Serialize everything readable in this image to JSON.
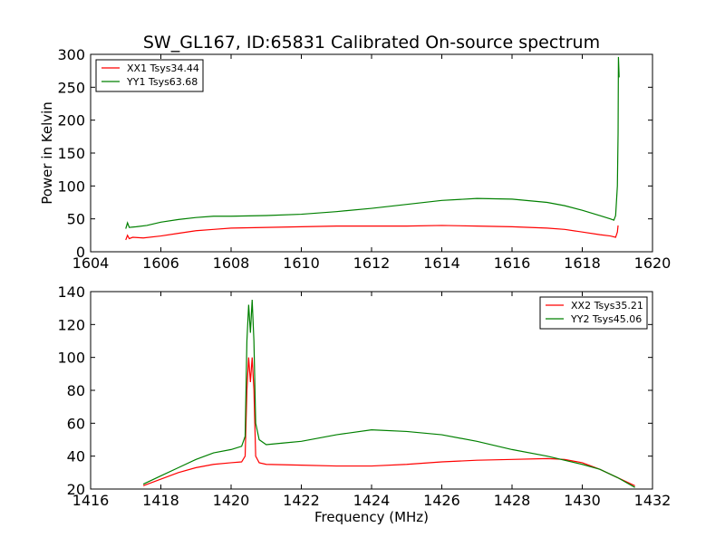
{
  "figure": {
    "title": "SW_GL167, ID:65831 Calibrated On-source spectrum",
    "ylabel": "Power in Kelvin",
    "xlabel": "Frequency (MHz)"
  },
  "chart_data": [
    {
      "type": "line",
      "xlim": [
        1604,
        1620
      ],
      "ylim": [
        0,
        300
      ],
      "xticks": [
        1604,
        1606,
        1608,
        1610,
        1612,
        1614,
        1616,
        1618,
        1620
      ],
      "yticks": [
        0,
        50,
        100,
        150,
        200,
        250,
        300
      ],
      "ylabel": "Power in Kelvin",
      "legend_position": "top-left",
      "series": [
        {
          "name": "XX1 Tsys34.44",
          "color": "#ff0000",
          "points": [
            [
              1605.0,
              18
            ],
            [
              1605.05,
              25
            ],
            [
              1605.1,
              20
            ],
            [
              1605.2,
              22
            ],
            [
              1605.5,
              21
            ],
            [
              1606.0,
              24
            ],
            [
              1606.5,
              28
            ],
            [
              1607.0,
              32
            ],
            [
              1607.5,
              34
            ],
            [
              1608.0,
              36
            ],
            [
              1609.0,
              37
            ],
            [
              1610.0,
              38
            ],
            [
              1611.0,
              39
            ],
            [
              1612.0,
              39
            ],
            [
              1613.0,
              39
            ],
            [
              1614.0,
              40
            ],
            [
              1615.0,
              39
            ],
            [
              1616.0,
              38
            ],
            [
              1617.0,
              36
            ],
            [
              1617.5,
              34
            ],
            [
              1618.0,
              30
            ],
            [
              1618.5,
              26
            ],
            [
              1618.8,
              24
            ],
            [
              1618.95,
              22
            ],
            [
              1619.0,
              30
            ],
            [
              1619.02,
              40
            ]
          ]
        },
        {
          "name": "YY1 Tsys63.68",
          "color": "#008000",
          "points": [
            [
              1605.0,
              35
            ],
            [
              1605.05,
              44
            ],
            [
              1605.1,
              37
            ],
            [
              1605.3,
              38
            ],
            [
              1605.6,
              40
            ],
            [
              1606.0,
              45
            ],
            [
              1606.5,
              49
            ],
            [
              1607.0,
              52
            ],
            [
              1607.5,
              54
            ],
            [
              1608.0,
              54
            ],
            [
              1609.0,
              55
            ],
            [
              1610.0,
              57
            ],
            [
              1611.0,
              61
            ],
            [
              1612.0,
              66
            ],
            [
              1613.0,
              72
            ],
            [
              1614.0,
              78
            ],
            [
              1615.0,
              81
            ],
            [
              1616.0,
              80
            ],
            [
              1617.0,
              75
            ],
            [
              1617.5,
              70
            ],
            [
              1618.0,
              63
            ],
            [
              1618.5,
              55
            ],
            [
              1618.8,
              50
            ],
            [
              1618.9,
              48
            ],
            [
              1618.95,
              55
            ],
            [
              1619.0,
              100
            ],
            [
              1619.02,
              180
            ],
            [
              1619.03,
              296
            ],
            [
              1619.05,
              265
            ]
          ]
        }
      ]
    },
    {
      "type": "line",
      "xlim": [
        1416,
        1432
      ],
      "ylim": [
        20,
        140
      ],
      "xticks": [
        1416,
        1418,
        1420,
        1422,
        1424,
        1426,
        1428,
        1430,
        1432
      ],
      "yticks": [
        20,
        40,
        60,
        80,
        100,
        120,
        140
      ],
      "xlabel": "Frequency (MHz)",
      "legend_position": "top-right",
      "series": [
        {
          "name": "XX2 Tsys35.21",
          "color": "#ff0000",
          "points": [
            [
              1417.5,
              22
            ],
            [
              1418.0,
              26
            ],
            [
              1418.5,
              30
            ],
            [
              1419.0,
              33
            ],
            [
              1419.5,
              35
            ],
            [
              1420.0,
              36
            ],
            [
              1420.3,
              36.5
            ],
            [
              1420.4,
              40
            ],
            [
              1420.45,
              80
            ],
            [
              1420.5,
              100
            ],
            [
              1420.55,
              85
            ],
            [
              1420.6,
              100
            ],
            [
              1420.65,
              80
            ],
            [
              1420.7,
              40
            ],
            [
              1420.8,
              36
            ],
            [
              1421.0,
              35
            ],
            [
              1422.0,
              34.5
            ],
            [
              1423.0,
              34
            ],
            [
              1424.0,
              34
            ],
            [
              1425.0,
              35
            ],
            [
              1426.0,
              36.5
            ],
            [
              1427.0,
              37.5
            ],
            [
              1428.0,
              38
            ],
            [
              1429.0,
              38.5
            ],
            [
              1429.5,
              38
            ],
            [
              1430.0,
              36
            ],
            [
              1430.5,
              32
            ],
            [
              1431.0,
              27
            ],
            [
              1431.5,
              22
            ]
          ]
        },
        {
          "name": "YY2 Tsys45.06",
          "color": "#008000",
          "points": [
            [
              1417.5,
              23
            ],
            [
              1418.0,
              28
            ],
            [
              1418.5,
              33
            ],
            [
              1419.0,
              38
            ],
            [
              1419.5,
              42
            ],
            [
              1420.0,
              44
            ],
            [
              1420.3,
              46
            ],
            [
              1420.4,
              52
            ],
            [
              1420.45,
              110
            ],
            [
              1420.5,
              132
            ],
            [
              1420.55,
              115
            ],
            [
              1420.6,
              135
            ],
            [
              1420.65,
              110
            ],
            [
              1420.7,
              60
            ],
            [
              1420.8,
              50
            ],
            [
              1421.0,
              47
            ],
            [
              1421.5,
              48
            ],
            [
              1422.0,
              49
            ],
            [
              1423.0,
              53
            ],
            [
              1424.0,
              56
            ],
            [
              1425.0,
              55
            ],
            [
              1426.0,
              53
            ],
            [
              1427.0,
              49
            ],
            [
              1428.0,
              44
            ],
            [
              1429.0,
              40
            ],
            [
              1430.0,
              35
            ],
            [
              1430.5,
              32
            ],
            [
              1431.0,
              27
            ],
            [
              1431.5,
              21
            ]
          ]
        }
      ]
    }
  ]
}
